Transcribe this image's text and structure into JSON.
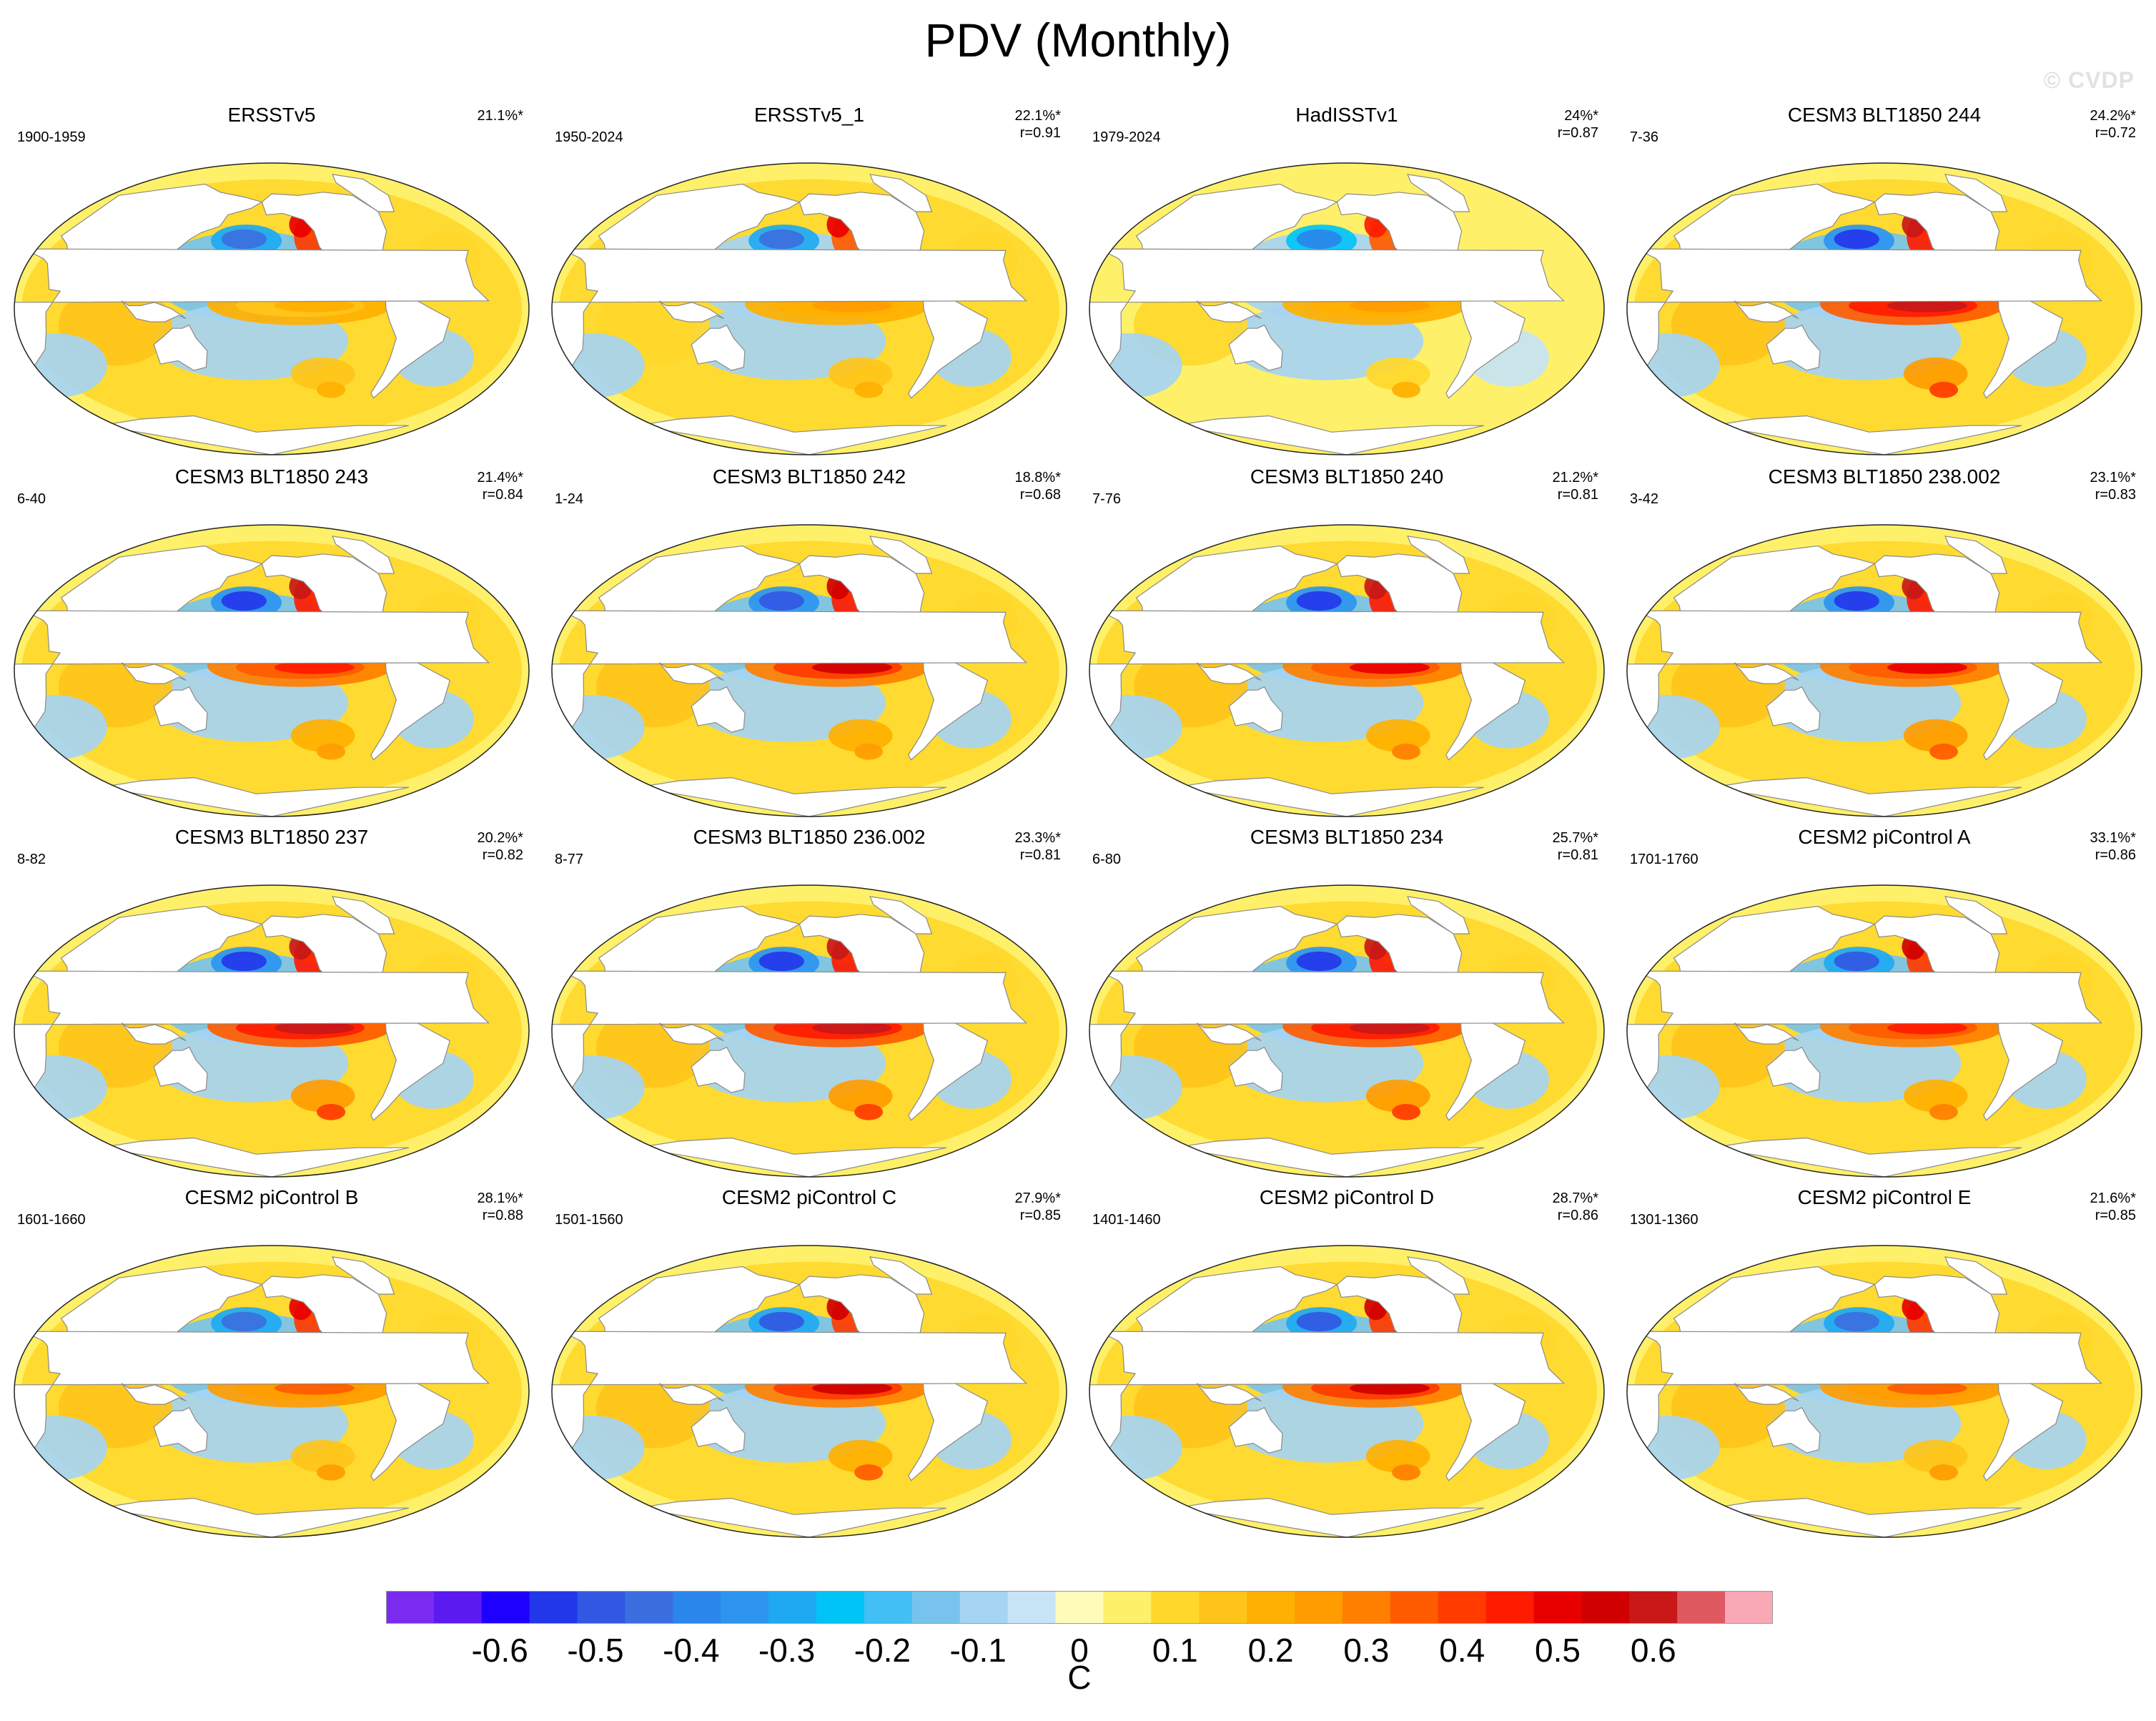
{
  "title": "PDV (Monthly)",
  "watermark": "© CVDP",
  "colors": {
    "land": "#ffffff",
    "coast": "#8a8a8a",
    "palette": [
      "#7b2bf0",
      "#5a1af0",
      "#1e00ff",
      "#2337ea",
      "#3258e3",
      "#3b6fe0",
      "#2a86ea",
      "#2d95f0",
      "#1ea9f2",
      "#01c4f6",
      "#42bff5",
      "#77c3ee",
      "#a6d4f3",
      "#c6e4f5",
      "#fffcba",
      "#fff069",
      "#ffd82b",
      "#ffc41a",
      "#ffb000",
      "#ff9c00",
      "#ff7f00",
      "#ff5b00",
      "#ff3b00",
      "#ff1b00",
      "#e80000",
      "#d00000",
      "#c81818",
      "#df5961",
      "#f9a8b6"
    ]
  },
  "colorbar": {
    "tick_labels": [
      "-0.6",
      "-0.5",
      "-0.4",
      "-0.3",
      "-0.2",
      "-0.1",
      "0",
      "0.1",
      "0.2",
      "0.3",
      "0.4",
      "0.5",
      "0.6"
    ],
    "unit": "C"
  },
  "panels": [
    {
      "title": "ERSSTv5",
      "period": "1900-1959",
      "pct": "21.1%*",
      "r": "",
      "pattern": 0.85,
      "tropics": 0.35,
      "south": 0.5
    },
    {
      "title": "ERSSTv5_1",
      "period": "1950-2024",
      "pct": "22.1%*",
      "r": "r=0.91",
      "pattern": 0.8,
      "tropics": 0.4,
      "south": 0.45
    },
    {
      "title": "HadISSTv1",
      "period": "1979-2024",
      "pct": "24%*",
      "r": "r=0.87",
      "pattern": 0.75,
      "tropics": 0.4,
      "south": 0.4
    },
    {
      "title": "CESM3 BLT1850 244",
      "period": "7-36",
      "pct": "24.2%*",
      "r": "r=0.72",
      "pattern": 1.0,
      "tropics": 1.0,
      "south": 0.9
    },
    {
      "title": "CESM3 BLT1850 243",
      "period": "6-40",
      "pct": "21.4%*",
      "r": "r=0.84",
      "pattern": 1.0,
      "tropics": 0.75,
      "south": 0.6
    },
    {
      "title": "CESM3 BLT1850 242",
      "period": "1-24",
      "pct": "18.8%*",
      "r": "r=0.68",
      "pattern": 0.95,
      "tropics": 0.9,
      "south": 0.6
    },
    {
      "title": "CESM3 BLT1850 240",
      "period": "7-76",
      "pct": "21.2%*",
      "r": "r=0.81",
      "pattern": 1.0,
      "tropics": 0.8,
      "south": 0.7
    },
    {
      "title": "CESM3 BLT1850 238.002",
      "period": "3-42",
      "pct": "23.1%*",
      "r": "r=0.83",
      "pattern": 1.0,
      "tropics": 0.8,
      "south": 0.8
    },
    {
      "title": "CESM3 BLT1850 237",
      "period": "8-82",
      "pct": "20.2%*",
      "r": "r=0.82",
      "pattern": 1.0,
      "tropics": 0.95,
      "south": 0.85
    },
    {
      "title": "CESM3 BLT1850 236.002",
      "period": "8-77",
      "pct": "23.3%*",
      "r": "r=0.81",
      "pattern": 1.0,
      "tropics": 0.95,
      "south": 0.85
    },
    {
      "title": "CESM3 BLT1850 234",
      "period": "6-80",
      "pct": "25.7%*",
      "r": "r=0.81",
      "pattern": 1.0,
      "tropics": 1.0,
      "south": 0.85
    },
    {
      "title": "CESM2 piControl A",
      "period": "1701-1760",
      "pct": "33.1%*",
      "r": "r=0.86",
      "pattern": 0.9,
      "tropics": 0.75,
      "south": 0.7
    },
    {
      "title": "CESM2 piControl B",
      "period": "1601-1660",
      "pct": "28.1%*",
      "r": "r=0.88",
      "pattern": 0.85,
      "tropics": 0.6,
      "south": 0.55
    },
    {
      "title": "CESM2 piControl C",
      "period": "1501-1560",
      "pct": "27.9%*",
      "r": "r=0.85",
      "pattern": 0.9,
      "tropics": 0.85,
      "south": 0.75
    },
    {
      "title": "CESM2 piControl D",
      "period": "1401-1460",
      "pct": "28.7%*",
      "r": "r=0.86",
      "pattern": 0.9,
      "tropics": 0.85,
      "south": 0.7
    },
    {
      "title": "CESM2 piControl E",
      "period": "1301-1360",
      "pct": "21.6%*",
      "r": "r=0.85",
      "pattern": 0.85,
      "tropics": 0.6,
      "south": 0.55
    }
  ]
}
